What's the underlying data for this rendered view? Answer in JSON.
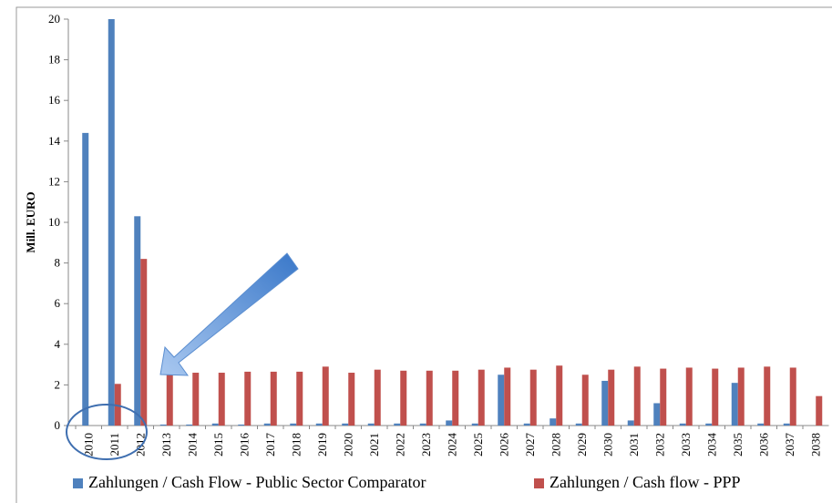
{
  "chart_data": {
    "type": "bar",
    "ylabel": "Mill. EURO",
    "categories": [
      "2010",
      "2011",
      "2012",
      "2013",
      "2014",
      "2015",
      "2016",
      "2017",
      "2018",
      "2019",
      "2020",
      "2021",
      "2022",
      "2023",
      "2024",
      "2025",
      "2026",
      "2027",
      "2028",
      "2029",
      "2030",
      "2031",
      "2032",
      "2033",
      "2034",
      "2035",
      "2036",
      "2037",
      "2038"
    ],
    "series": [
      {
        "name": "Zahlungen / Cash Flow - Public Sector Comparator",
        "color": "#4f81bd",
        "values": [
          14.4,
          20,
          10.3,
          0.05,
          0.05,
          0.1,
          0.05,
          0.1,
          0.1,
          0.1,
          0.1,
          0.1,
          0.1,
          0.1,
          0.25,
          0.1,
          2.5,
          0.1,
          0.35,
          0.1,
          2.2,
          0.25,
          1.1,
          0.1,
          0.1,
          2.1,
          0.1,
          0.1,
          0
        ]
      },
      {
        "name": "Zahlungen / Cash flow - PPP",
        "color": "#c0504d",
        "values": [
          0,
          2.05,
          8.2,
          2.6,
          2.6,
          2.6,
          2.65,
          2.65,
          2.65,
          2.9,
          2.6,
          2.75,
          2.7,
          2.7,
          2.7,
          2.75,
          2.85,
          2.75,
          2.95,
          2.5,
          2.75,
          2.9,
          2.8,
          2.85,
          2.8,
          2.85,
          2.9,
          2.85,
          1.45
        ]
      }
    ],
    "ylim": [
      0,
      20
    ],
    "yticks": [
      0,
      2,
      4,
      6,
      8,
      10,
      12,
      14,
      16,
      18,
      20
    ],
    "grid": false,
    "legend": "bottom"
  }
}
